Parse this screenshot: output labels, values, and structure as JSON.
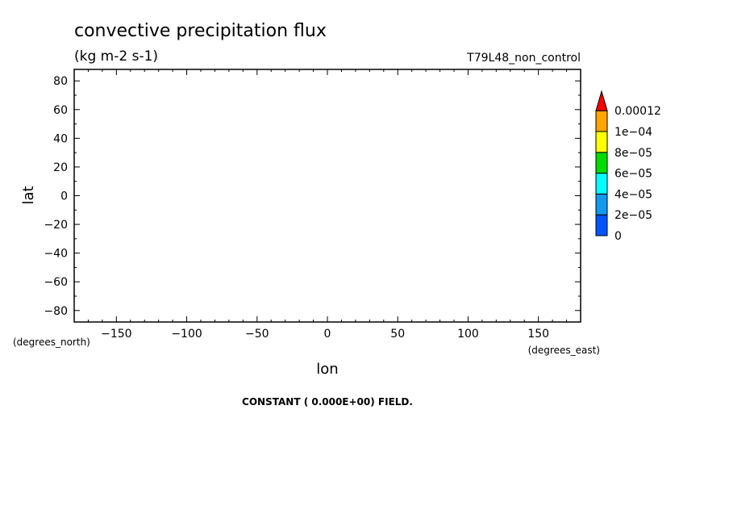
{
  "chart_data": {
    "type": "heatmap",
    "title": "convective precipitation flux",
    "units": "(kg m-2 s-1)",
    "dataset": "T79L48_non_control",
    "xlabel": "lon",
    "ylabel": "lat",
    "x_units": "(degrees_east)",
    "y_units": "(degrees_north)",
    "xlim": [
      -180,
      180
    ],
    "ylim": [
      -88,
      88
    ],
    "x_ticks": [
      -150,
      -100,
      -50,
      0,
      50,
      100,
      150
    ],
    "x_tick_labels": [
      "−150",
      "−100",
      "−50",
      "0",
      "50",
      "100",
      "150"
    ],
    "y_ticks": [
      80,
      60,
      40,
      20,
      0,
      -20,
      -40,
      -60,
      -80
    ],
    "y_tick_labels": [
      "80",
      "60",
      "40",
      "20",
      "0",
      "−20",
      "−40",
      "−60",
      "−80"
    ],
    "colorbar": {
      "levels": [
        "0",
        "2e−05",
        "4e−05",
        "6e−05",
        "8e−05",
        "1e−04",
        "0.00012"
      ],
      "colors": [
        "#0055ff",
        "#1199ee",
        "#00ffff",
        "#00dd00",
        "#ffff00",
        "#ffa500",
        "#ff0000"
      ]
    },
    "note": "CONSTANT ( 0.000E+00) FIELD.",
    "field_value": 0
  }
}
